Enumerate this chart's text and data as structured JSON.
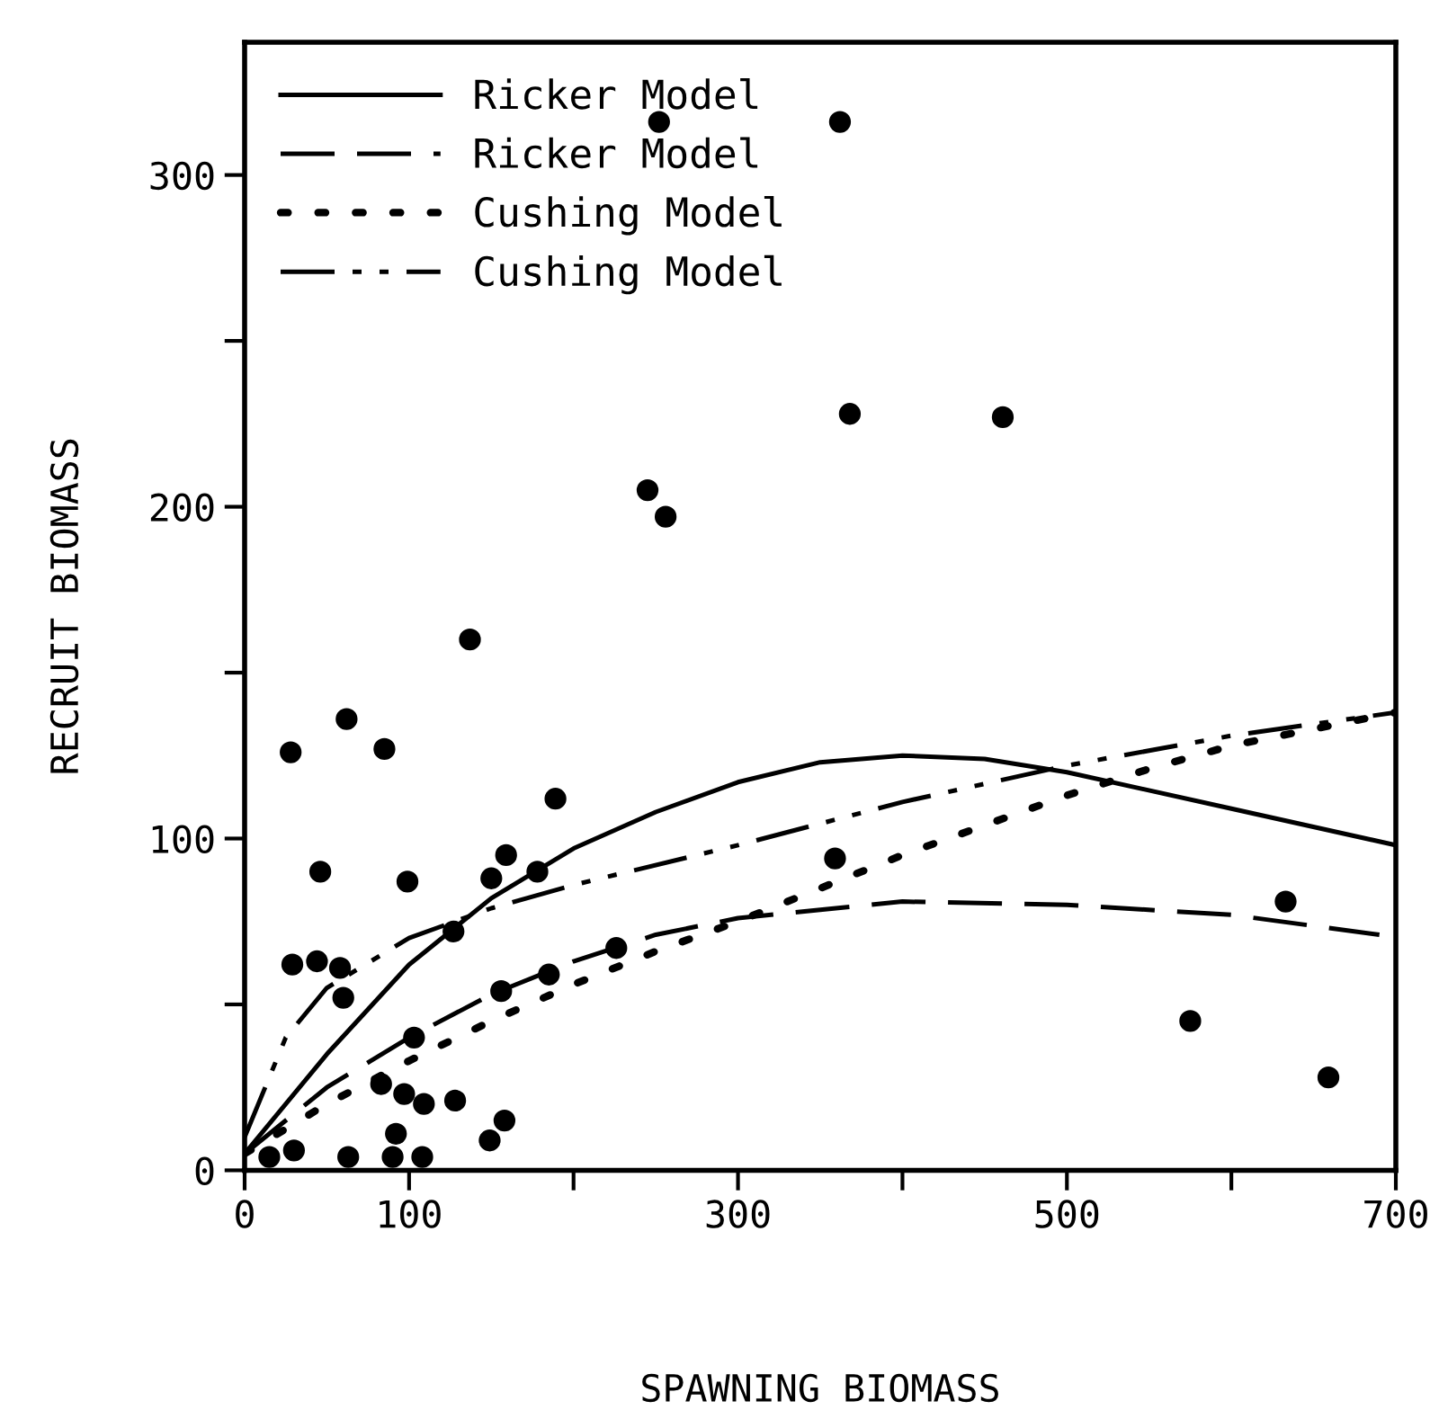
{
  "chart_data": {
    "type": "scatter",
    "xlabel": "SPAWNING BIOMASS",
    "ylabel": "RECRUIT BIOMASS",
    "xlim": [
      0,
      700
    ],
    "ylim": [
      0,
      340
    ],
    "xticks": [
      0,
      100,
      {
        "value": 200,
        "label": null
      },
      300,
      {
        "value": 400,
        "label": null
      },
      500,
      {
        "value": 600,
        "label": null
      },
      700
    ],
    "yticks": [
      0,
      {
        "value": 50,
        "label": null
      },
      100,
      {
        "value": 150,
        "label": null
      },
      200,
      {
        "value": 250,
        "label": null
      },
      300
    ],
    "grid": false,
    "legend": "top left",
    "series": [
      {
        "color": "#000000",
        "marker": "circle",
        "x": [
          252,
          368,
          245,
          256,
          362,
          461,
          137,
          62,
          28,
          85,
          189,
          46,
          99,
          159,
          150,
          178,
          127,
          29,
          44,
          58,
          60,
          103,
          156,
          185,
          226,
          83,
          97,
          109,
          128,
          158,
          149,
          92,
          90,
          108,
          63,
          30,
          15,
          359,
          633,
          575,
          659
        ],
        "values": [
          316,
          228,
          205,
          197,
          316,
          227,
          160,
          136,
          126,
          127,
          112,
          90,
          87,
          95,
          88,
          90,
          72,
          62,
          63,
          61,
          52,
          40,
          54,
          59,
          67,
          26,
          23,
          20,
          21,
          15,
          9,
          11,
          4,
          4,
          4,
          6,
          4,
          94,
          81,
          45,
          28
        ]
      },
      {
        "type": "line",
        "name": "Ricker Model",
        "color": "#000000",
        "line_style": "solid",
        "marker": "none",
        "x": [
          0,
          50,
          100,
          150,
          200,
          250,
          300,
          350,
          400,
          450,
          500,
          600,
          700
        ],
        "values": [
          5,
          35,
          62,
          82,
          97,
          108,
          117,
          123,
          125,
          124,
          120,
          109,
          98
        ]
      },
      {
        "type": "line",
        "name": "Ricker Model",
        "color": "#000000",
        "line_style": "dashed",
        "marker": "none",
        "x": [
          0,
          50,
          100,
          150,
          200,
          250,
          300,
          400,
          500,
          600,
          690
        ],
        "values": [
          5,
          25,
          40,
          53,
          63,
          71,
          76,
          81,
          80,
          77,
          71
        ]
      },
      {
        "type": "line",
        "name": "Cushing Model",
        "color": "#000000",
        "line_style": "dotted",
        "marker": "none",
        "x": [
          0,
          50,
          100,
          150,
          200,
          250,
          300,
          350,
          400,
          450,
          500,
          550,
          600,
          700
        ],
        "values": [
          5,
          20,
          33,
          45,
          56,
          66,
          75,
          85,
          95,
          104,
          113,
          121,
          128,
          138
        ]
      },
      {
        "type": "line",
        "name": "Cushing Model",
        "color": "#000000",
        "line_style": "dashdotdot",
        "marker": "none",
        "x": [
          0,
          25,
          50,
          100,
          150,
          200,
          300,
          400,
          500,
          600,
          700
        ],
        "values": [
          10,
          40,
          55,
          70,
          79,
          86,
          98,
          111,
          122,
          131,
          138
        ]
      }
    ]
  }
}
